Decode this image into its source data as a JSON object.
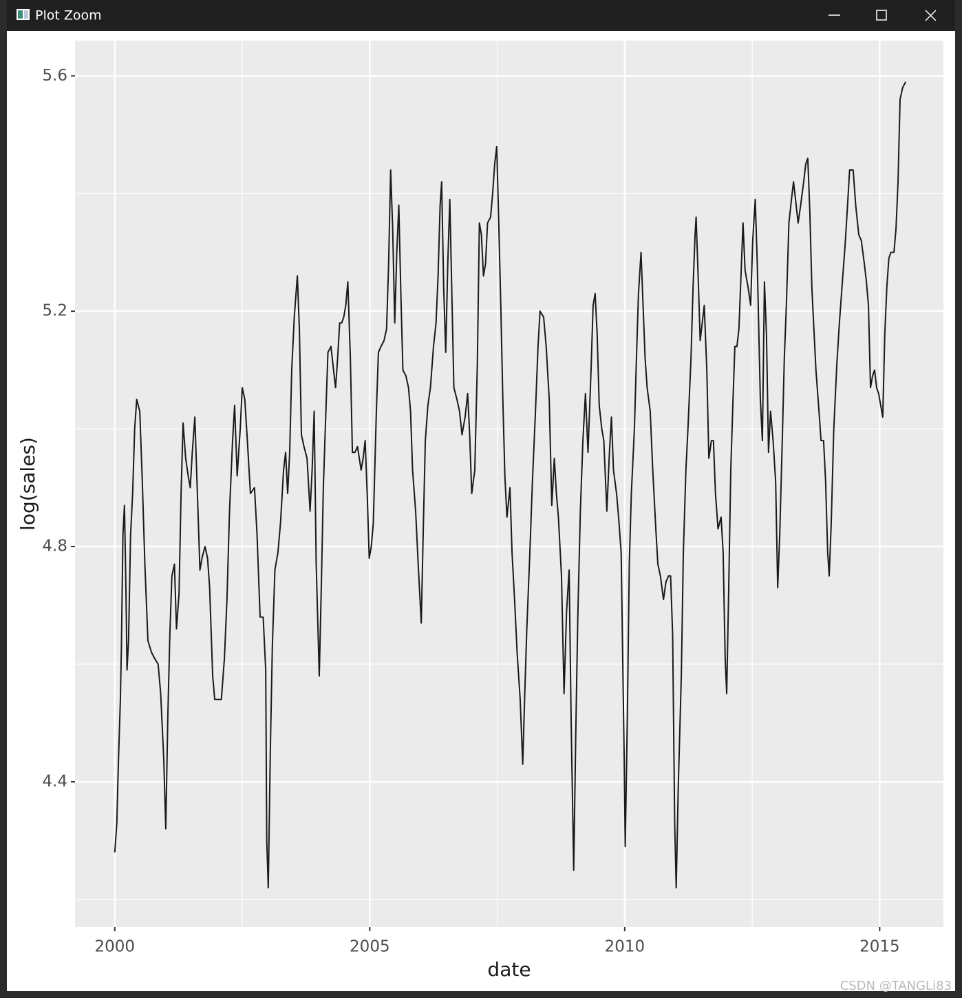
{
  "window": {
    "title": "Plot Zoom",
    "watermark": "CSDN @TANGLi83"
  },
  "chart_data": {
    "type": "line",
    "x_label": "date",
    "y_label": "log(sales)",
    "color": "#1a1a1a",
    "xlim": [
      1999.22,
      2016.25
    ],
    "ylim": [
      4.153,
      5.66
    ],
    "xticks": [
      2000,
      2005,
      2010,
      2015
    ],
    "yticks": [
      4.4,
      4.8,
      5.2,
      5.6
    ],
    "xticks_minor": [
      2002.5,
      2007.5,
      2012.5
    ],
    "yticks_minor": [
      4.2,
      4.6,
      5.0,
      5.4
    ],
    "grid": true,
    "x": [
      2000.0,
      2000.04,
      2000.07,
      2000.11,
      2000.13,
      2000.16,
      2000.19,
      2000.22,
      2000.24,
      2000.27,
      2000.31,
      2000.35,
      2000.39,
      2000.43,
      2000.49,
      2000.54,
      2000.59,
      2000.65,
      2000.72,
      2000.78,
      2000.85,
      2000.9,
      2000.96,
      2001.0,
      2001.04,
      2001.08,
      2001.12,
      2001.17,
      2001.21,
      2001.26,
      2001.3,
      2001.34,
      2001.39,
      2001.44,
      2001.48,
      2001.52,
      2001.57,
      2001.62,
      2001.67,
      2001.71,
      2001.77,
      2001.82,
      2001.86,
      2001.92,
      2001.96,
      2002.04,
      2002.09,
      2002.15,
      2002.2,
      2002.25,
      2002.31,
      2002.35,
      2002.4,
      2002.46,
      2002.5,
      2002.55,
      2002.6,
      2002.66,
      2002.74,
      2002.79,
      2002.85,
      2002.91,
      2002.96,
      2002.98,
      2003.01,
      2003.05,
      2003.09,
      2003.14,
      2003.2,
      2003.25,
      2003.31,
      2003.35,
      2003.39,
      2003.43,
      2003.47,
      2003.52,
      2003.58,
      2003.62,
      2003.66,
      2003.71,
      2003.77,
      2003.83,
      2003.87,
      2003.91,
      2003.95,
      2004.01,
      2004.05,
      2004.09,
      2004.14,
      2004.18,
      2004.24,
      2004.29,
      2004.33,
      2004.37,
      2004.41,
      2004.45,
      2004.49,
      2004.53,
      2004.57,
      2004.62,
      2004.66,
      2004.71,
      2004.76,
      2004.83,
      2004.87,
      2004.91,
      2004.95,
      2004.99,
      2005.03,
      2005.07,
      2005.13,
      2005.17,
      2005.22,
      2005.28,
      2005.33,
      2005.37,
      2005.41,
      2005.45,
      2005.49,
      2005.53,
      2005.57,
      2005.61,
      2005.65,
      2005.71,
      2005.76,
      2005.8,
      2005.84,
      2005.9,
      2005.95,
      2006.01,
      2006.05,
      2006.09,
      2006.14,
      2006.19,
      2006.25,
      2006.3,
      2006.34,
      2006.38,
      2006.41,
      2006.45,
      2006.49,
      2006.53,
      2006.57,
      2006.61,
      2006.65,
      2006.71,
      2006.76,
      2006.81,
      2006.87,
      2006.92,
      2006.96,
      2007.0,
      2007.06,
      2007.11,
      2007.15,
      2007.19,
      2007.23,
      2007.27,
      2007.31,
      2007.37,
      2007.41,
      2007.45,
      2007.49,
      2007.53,
      2007.57,
      2007.61,
      2007.65,
      2007.69,
      2007.75,
      2007.79,
      2007.84,
      2007.89,
      2007.95,
      2008.0,
      2008.04,
      2008.08,
      2008.14,
      2008.19,
      2008.25,
      2008.3,
      2008.34,
      2008.41,
      2008.46,
      2008.52,
      2008.57,
      2008.62,
      2008.66,
      2008.7,
      2008.76,
      2008.81,
      2008.86,
      2008.91,
      2008.95,
      2009.0,
      2009.04,
      2009.08,
      2009.13,
      2009.18,
      2009.23,
      2009.28,
      2009.34,
      2009.38,
      2009.42,
      2009.46,
      2009.5,
      2009.55,
      2009.59,
      2009.65,
      2009.7,
      2009.74,
      2009.78,
      2009.84,
      2009.88,
      2009.93,
      2009.99,
      2010.01,
      2010.05,
      2010.09,
      2010.13,
      2010.19,
      2010.23,
      2010.27,
      2010.32,
      2010.36,
      2010.4,
      2010.44,
      2010.5,
      2010.55,
      2010.61,
      2010.65,
      2010.7,
      2010.76,
      2010.81,
      2010.86,
      2010.9,
      2010.94,
      2010.98,
      2011.01,
      2011.05,
      2011.11,
      2011.15,
      2011.2,
      2011.24,
      2011.3,
      2011.34,
      2011.38,
      2011.4,
      2011.44,
      2011.48,
      2011.52,
      2011.56,
      2011.61,
      2011.65,
      2011.7,
      2011.74,
      2011.78,
      2011.83,
      2011.89,
      2011.93,
      2011.97,
      2012.0,
      2012.04,
      2012.08,
      2012.12,
      2012.16,
      2012.2,
      2012.24,
      2012.28,
      2012.32,
      2012.36,
      2012.42,
      2012.47,
      2012.51,
      2012.56,
      2012.6,
      2012.66,
      2012.7,
      2012.74,
      2012.78,
      2012.82,
      2012.86,
      2012.91,
      2012.96,
      2013.0,
      2013.04,
      2013.09,
      2013.13,
      2013.17,
      2013.22,
      2013.27,
      2013.31,
      2013.35,
      2013.4,
      2013.45,
      2013.51,
      2013.55,
      2013.59,
      2013.63,
      2013.67,
      2013.71,
      2013.75,
      2013.81,
      2013.85,
      2013.9,
      2013.94,
      2013.98,
      2014.01,
      2014.05,
      2014.1,
      2014.16,
      2014.21,
      2014.26,
      2014.32,
      2014.37,
      2014.41,
      2014.48,
      2014.53,
      2014.59,
      2014.64,
      2014.7,
      2014.74,
      2014.78,
      2014.82,
      2014.86,
      2014.9,
      2014.94,
      2014.98,
      2015.02,
      2015.06,
      2015.1,
      2015.14,
      2015.18,
      2015.22,
      2015.28,
      2015.32,
      2015.36,
      2015.4,
      2015.45,
      2015.51
    ],
    "values": [
      4.28,
      4.33,
      4.43,
      4.54,
      4.63,
      4.82,
      4.87,
      4.72,
      4.59,
      4.64,
      4.82,
      4.89,
      5.0,
      5.05,
      5.03,
      4.91,
      4.77,
      4.64,
      4.62,
      4.61,
      4.6,
      4.55,
      4.44,
      4.32,
      4.51,
      4.65,
      4.75,
      4.77,
      4.66,
      4.72,
      4.89,
      5.01,
      4.95,
      4.92,
      4.9,
      4.96,
      5.02,
      4.89,
      4.76,
      4.78,
      4.8,
      4.78,
      4.73,
      4.58,
      4.54,
      4.54,
      4.54,
      4.61,
      4.71,
      4.86,
      4.98,
      5.04,
      4.92,
      5.0,
      5.07,
      5.05,
      4.98,
      4.89,
      4.9,
      4.82,
      4.68,
      4.68,
      4.59,
      4.3,
      4.22,
      4.45,
      4.63,
      4.76,
      4.79,
      4.84,
      4.93,
      4.96,
      4.89,
      4.96,
      5.1,
      5.19,
      5.26,
      5.17,
      4.99,
      4.97,
      4.95,
      4.86,
      4.93,
      5.03,
      4.77,
      4.58,
      4.73,
      4.9,
      5.03,
      5.13,
      5.14,
      5.1,
      5.07,
      5.12,
      5.18,
      5.18,
      5.19,
      5.21,
      5.25,
      5.12,
      4.96,
      4.96,
      4.97,
      4.93,
      4.95,
      4.98,
      4.89,
      4.78,
      4.8,
      4.84,
      5.03,
      5.13,
      5.14,
      5.15,
      5.17,
      5.28,
      5.44,
      5.34,
      5.18,
      5.3,
      5.38,
      5.23,
      5.1,
      5.09,
      5.07,
      5.03,
      4.93,
      4.86,
      4.77,
      4.67,
      4.83,
      4.98,
      5.04,
      5.07,
      5.14,
      5.18,
      5.26,
      5.38,
      5.42,
      5.24,
      5.13,
      5.28,
      5.39,
      5.23,
      5.07,
      5.05,
      5.03,
      4.99,
      5.02,
      5.06,
      4.99,
      4.89,
      4.93,
      5.11,
      5.35,
      5.33,
      5.26,
      5.28,
      5.35,
      5.36,
      5.4,
      5.45,
      5.48,
      5.35,
      5.21,
      5.05,
      4.92,
      4.85,
      4.9,
      4.79,
      4.71,
      4.62,
      4.54,
      4.43,
      4.55,
      4.66,
      4.79,
      4.91,
      5.03,
      5.14,
      5.2,
      5.19,
      5.14,
      5.05,
      4.87,
      4.95,
      4.89,
      4.85,
      4.75,
      4.55,
      4.69,
      4.76,
      4.5,
      4.25,
      4.48,
      4.68,
      4.86,
      4.98,
      5.06,
      4.96,
      5.1,
      5.21,
      5.23,
      5.16,
      5.04,
      5.0,
      4.98,
      4.86,
      4.96,
      5.02,
      4.93,
      4.89,
      4.85,
      4.79,
      4.44,
      4.29,
      4.5,
      4.77,
      4.89,
      5.0,
      5.12,
      5.23,
      5.3,
      5.21,
      5.12,
      5.07,
      5.03,
      4.93,
      4.83,
      4.77,
      4.75,
      4.71,
      4.74,
      4.75,
      4.75,
      4.65,
      4.33,
      4.22,
      4.39,
      4.58,
      4.79,
      4.93,
      5.0,
      5.12,
      5.24,
      5.33,
      5.36,
      5.26,
      5.15,
      5.18,
      5.21,
      5.1,
      4.95,
      4.98,
      4.98,
      4.89,
      4.83,
      4.85,
      4.79,
      4.61,
      4.55,
      4.73,
      4.93,
      5.04,
      5.14,
      5.14,
      5.17,
      5.26,
      5.35,
      5.27,
      5.24,
      5.21,
      5.32,
      5.39,
      5.28,
      5.05,
      4.98,
      5.25,
      5.16,
      4.96,
      5.03,
      4.98,
      4.91,
      4.73,
      4.82,
      4.98,
      5.12,
      5.21,
      5.35,
      5.39,
      5.42,
      5.39,
      5.35,
      5.38,
      5.42,
      5.45,
      5.46,
      5.37,
      5.24,
      5.17,
      5.1,
      5.03,
      4.98,
      4.98,
      4.91,
      4.79,
      4.75,
      4.84,
      5.0,
      5.11,
      5.18,
      5.24,
      5.31,
      5.38,
      5.44,
      5.44,
      5.38,
      5.33,
      5.32,
      5.28,
      5.25,
      5.21,
      5.07,
      5.09,
      5.1,
      5.07,
      5.06,
      5.04,
      5.02,
      5.16,
      5.24,
      5.29,
      5.3,
      5.3,
      5.34,
      5.42,
      5.56,
      5.58,
      5.59
    ]
  }
}
